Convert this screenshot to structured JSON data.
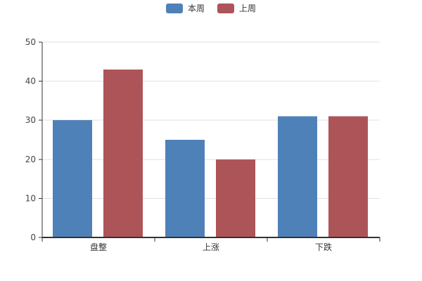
{
  "chart_data": {
    "type": "bar",
    "categories": [
      "盘整",
      "上涨",
      "下跌"
    ],
    "series": [
      {
        "name": "本周",
        "color": "#4f81b9",
        "values": [
          30,
          25,
          31
        ]
      },
      {
        "name": "上周",
        "color": "#ad5459",
        "values": [
          43,
          20,
          31
        ]
      }
    ],
    "title": "",
    "xlabel": "",
    "ylabel": "",
    "ylim": [
      0,
      50
    ],
    "yticks": [
      0,
      10,
      20,
      30,
      40,
      50
    ],
    "grid": true,
    "legend_position": "top-center"
  },
  "colors": {
    "background": "#ffffff",
    "axis": "#333333",
    "grid": "#e1e1e1",
    "tick_label": "#444444",
    "legend_text": "#333333"
  }
}
